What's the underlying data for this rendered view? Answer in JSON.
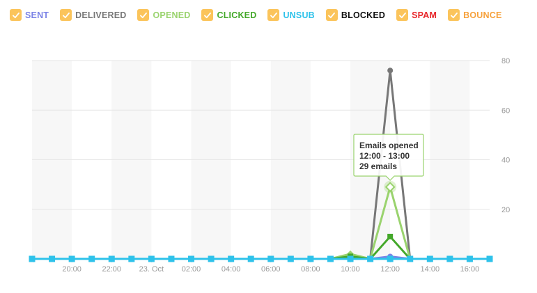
{
  "legend": [
    {
      "label": "SENT",
      "color": "#7b83e6",
      "checked": true
    },
    {
      "label": "DELIVERED",
      "color": "#777777",
      "checked": true
    },
    {
      "label": "OPENED",
      "color": "#9ad36e",
      "checked": true
    },
    {
      "label": "CLICKED",
      "color": "#44a82a",
      "checked": true
    },
    {
      "label": "UNSUB",
      "color": "#2ec2ea",
      "checked": true
    },
    {
      "label": "BLOCKED",
      "color": "#111111",
      "checked": true
    },
    {
      "label": "SPAM",
      "color": "#e8262a",
      "checked": true
    },
    {
      "label": "BOUNCE",
      "color": "#f6a13c",
      "checked": true
    }
  ],
  "checkbox_color": "#fbc45b",
  "chart_data": {
    "type": "line",
    "x_ticks": [
      "20:00",
      "22:00",
      "23. Oct",
      "02:00",
      "04:00",
      "06:00",
      "08:00",
      "10:00",
      "12:00",
      "14:00",
      "16:00"
    ],
    "x_tick_hours": [
      20,
      22,
      24,
      26,
      28,
      30,
      32,
      34,
      36,
      38,
      40
    ],
    "x_range_hours": [
      18,
      41
    ],
    "y_ticks": [
      "20",
      "40",
      "60",
      "80"
    ],
    "ylim": [
      0,
      80
    ],
    "x_hours": [
      18,
      19,
      20,
      21,
      22,
      23,
      24,
      25,
      26,
      27,
      28,
      29,
      30,
      31,
      32,
      33,
      34,
      35,
      36,
      37,
      38,
      39,
      40,
      41
    ],
    "series": [
      {
        "name": "SENT",
        "color": "#7b83e6",
        "marker": "circle",
        "values": [
          0,
          0,
          0,
          0,
          0,
          0,
          0,
          0,
          0,
          0,
          0,
          0,
          0,
          0,
          0,
          0,
          0,
          0,
          1,
          0,
          0,
          0,
          0,
          0
        ]
      },
      {
        "name": "DELIVERED",
        "color": "#777777",
        "marker": "circle",
        "values": [
          0,
          0,
          0,
          0,
          0,
          0,
          0,
          0,
          0,
          0,
          0,
          0,
          0,
          0,
          0,
          0,
          0,
          0,
          76,
          0,
          0,
          0,
          0,
          0
        ]
      },
      {
        "name": "OPENED",
        "color": "#9ad36e",
        "marker": "diamond",
        "values": [
          0,
          0,
          0,
          0,
          0,
          0,
          0,
          0,
          0,
          0,
          0,
          0,
          0,
          0,
          0,
          0,
          2,
          0,
          29,
          0,
          0,
          0,
          0,
          0
        ]
      },
      {
        "name": "CLICKED",
        "color": "#44a82a",
        "marker": "square",
        "values": [
          0,
          0,
          0,
          0,
          0,
          0,
          0,
          0,
          0,
          0,
          0,
          0,
          0,
          0,
          0,
          0,
          1,
          0,
          9,
          0,
          0,
          0,
          0,
          0
        ]
      },
      {
        "name": "UNSUB",
        "color": "#2ec2ea",
        "marker": "square",
        "values": [
          0,
          0,
          0,
          0,
          0,
          0,
          0,
          0,
          0,
          0,
          0,
          0,
          0,
          0,
          0,
          0,
          0,
          0,
          0,
          0,
          0,
          0,
          0,
          0
        ]
      }
    ],
    "tooltip": {
      "title": "Emails opened",
      "range": "12:00 - 13:00",
      "value": "29 emails",
      "series_index": 2,
      "point_index": 18
    }
  }
}
